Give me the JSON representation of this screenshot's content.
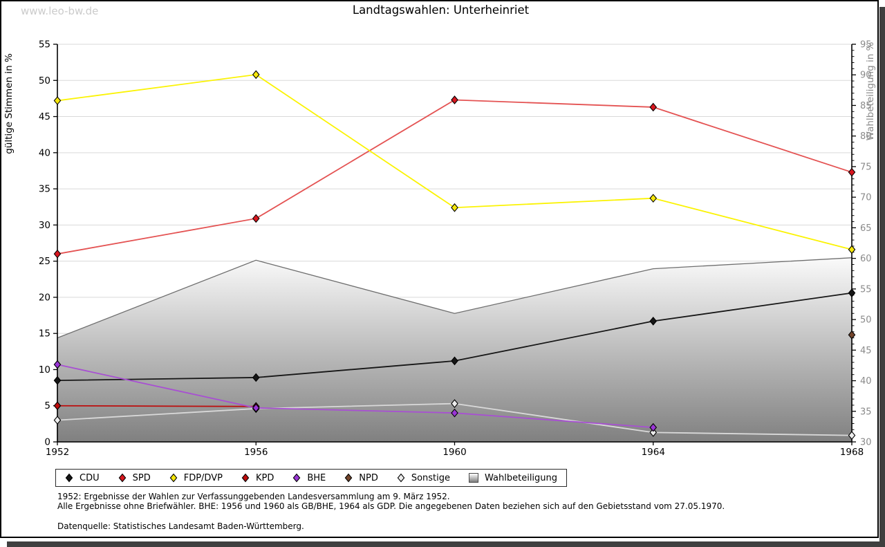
{
  "watermark": "www.leo-bw.de",
  "title": "Landtagswahlen: Unterheinriet",
  "chart_data": {
    "type": "line",
    "x": [
      1952,
      1956,
      1960,
      1964,
      1968
    ],
    "x_tick_labels": [
      "1952",
      "1956",
      "1960",
      "1964",
      "1968"
    ],
    "left_axis": {
      "title": "gültige Stimmen in %",
      "min": 0,
      "max": 55,
      "major_step": 5
    },
    "right_axis": {
      "title": "Wahlbeteiligung in %",
      "min": 30,
      "max": 95,
      "major_step": 5,
      "minor_step": 1
    },
    "grid": true,
    "legend_position": "bottom",
    "series": [
      {
        "id": "cdu",
        "name": "CDU",
        "axis": "left",
        "line_color": "#161616",
        "marker_color": "#161616",
        "x": [
          1952,
          1956,
          1960,
          1964,
          1968
        ],
        "values": [
          8.5,
          8.9,
          11.2,
          16.7,
          20.6
        ]
      },
      {
        "id": "spd",
        "name": "SPD",
        "axis": "left",
        "line_color": "#e45252",
        "marker_color": "#d8161f",
        "x": [
          1952,
          1956,
          1960,
          1964,
          1968
        ],
        "values": [
          26.0,
          30.9,
          47.3,
          46.3,
          37.3
        ]
      },
      {
        "id": "fdp",
        "name": "FDP/DVP",
        "axis": "left",
        "line_color": "#fbf303",
        "marker_color": "#f6e70a",
        "x": [
          1952,
          1956,
          1960,
          1964,
          1968
        ],
        "values": [
          47.2,
          50.8,
          32.4,
          33.7,
          26.6
        ]
      },
      {
        "id": "kpd",
        "name": "KPD",
        "axis": "left",
        "line_color": "#bd0c0c",
        "marker_color": "#bd0c0c",
        "x": [
          1952,
          1956
        ],
        "values": [
          5.0,
          4.9
        ]
      },
      {
        "id": "bhe",
        "name": "BHE",
        "axis": "left",
        "line_color": "#a84fd3",
        "marker_color": "#9a35d6",
        "x": [
          1952,
          1956,
          1960,
          1964
        ],
        "values": [
          10.7,
          4.7,
          4.0,
          2.0
        ]
      },
      {
        "id": "npd",
        "name": "NPD",
        "axis": "left",
        "line_color": "#74452b",
        "marker_color": "#74452b",
        "x": [
          1968
        ],
        "values": [
          14.8
        ]
      },
      {
        "id": "sonstige",
        "name": "Sonstige",
        "axis": "left",
        "line_color": "#d9d9d9",
        "marker_color": "#ededed",
        "x": [
          1952,
          1956,
          1960,
          1964,
          1968
        ],
        "values": [
          3.0,
          4.6,
          5.3,
          1.3,
          0.9
        ]
      }
    ],
    "area_series": {
      "id": "wahlbeteiligung",
      "name": "Wahlbeteiligung",
      "axis": "right",
      "outline_color": "#6e6e6e",
      "fill_top": "#fafafa",
      "fill_bottom": "#808080",
      "x": [
        1952,
        1956,
        1960,
        1964,
        1968
      ],
      "values": [
        47.0,
        59.7,
        51.0,
        58.3,
        60.1
      ]
    },
    "colors": {
      "gridline": "#d9d9d9",
      "axis": "#000000",
      "right_axis_text": "#8a8a8a"
    }
  },
  "legend": {
    "items": [
      {
        "id": "cdu",
        "label": "CDU"
      },
      {
        "id": "spd",
        "label": "SPD"
      },
      {
        "id": "fdp",
        "label": "FDP/DVP"
      },
      {
        "id": "kpd",
        "label": "KPD"
      },
      {
        "id": "bhe",
        "label": "BHE"
      },
      {
        "id": "npd",
        "label": "NPD"
      },
      {
        "id": "sonstige",
        "label": "Sonstige"
      },
      {
        "id": "wahlbeteiligung",
        "label": "Wahlbeteiligung"
      }
    ]
  },
  "footnotes": [
    "1952: Ergebnisse der Wahlen zur Verfassunggebenden Landesversammlung am 9. März 1952.",
    "Alle Ergebnisse ohne Briefwähler. BHE: 1956 und 1960 als GB/BHE, 1964 als GDP. Die angegebenen Daten beziehen sich auf den Gebietsstand vom 27.05.1970.",
    "Datenquelle: Statistisches Landesamt Baden-Württemberg."
  ]
}
